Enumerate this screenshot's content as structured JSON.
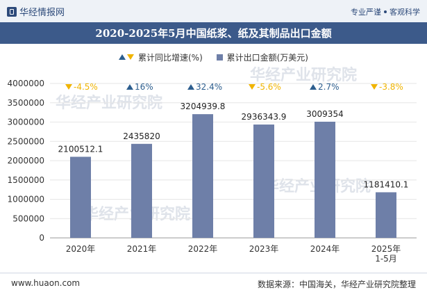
{
  "header": {
    "brand_name": "华经情报网",
    "slogan_left": "专业严谨",
    "slogan_right": "客观科学"
  },
  "chart_data": {
    "type": "bar",
    "title": "2020-2025年5月中国纸浆、纸及其制品出口金额",
    "categories": [
      "2020年",
      "2021年",
      "2022年",
      "2023年",
      "2024年",
      "2025年\n1-5月"
    ],
    "series": [
      {
        "name": "累计出口金额(万美元)",
        "values": [
          2100512.1,
          2435820,
          3204939.8,
          2936343.9,
          3009354,
          1181410.1
        ],
        "labels": [
          "2100512.1",
          "2435820",
          "3204939.8",
          "2936343.9",
          "3009354",
          "1181410.1"
        ]
      },
      {
        "name": "累计同比增速(%)",
        "values": [
          -4.5,
          16,
          32.4,
          -5.6,
          2.7,
          -3.8
        ],
        "labels": [
          "-4.5%",
          "16%",
          "32.4%",
          "-5.6%",
          "2.7%",
          "-3.8%"
        ]
      }
    ],
    "legend": {
      "growth_label": "累计同比增速(%)",
      "amount_label": "累计出口金额(万美元)"
    },
    "yaxis": {
      "ticks": [
        0,
        500000,
        1000000,
        1500000,
        2000000,
        2500000,
        3000000,
        3500000,
        4000000
      ],
      "tick_labels": [
        "0",
        "500000",
        "1000000",
        "1500000",
        "2000000",
        "2500000",
        "3000000",
        "3500000",
        "4000000"
      ]
    },
    "ylim": [
      0,
      4000000
    ],
    "xlabel": "",
    "ylabel": "",
    "colors": {
      "bar": "#6e7fa8",
      "up": "#2d5e8e",
      "down": "#f0b400"
    }
  },
  "footer": {
    "website": "www.huaon.com",
    "source": "数据来源：中国海关，华经产业研究院整理"
  }
}
